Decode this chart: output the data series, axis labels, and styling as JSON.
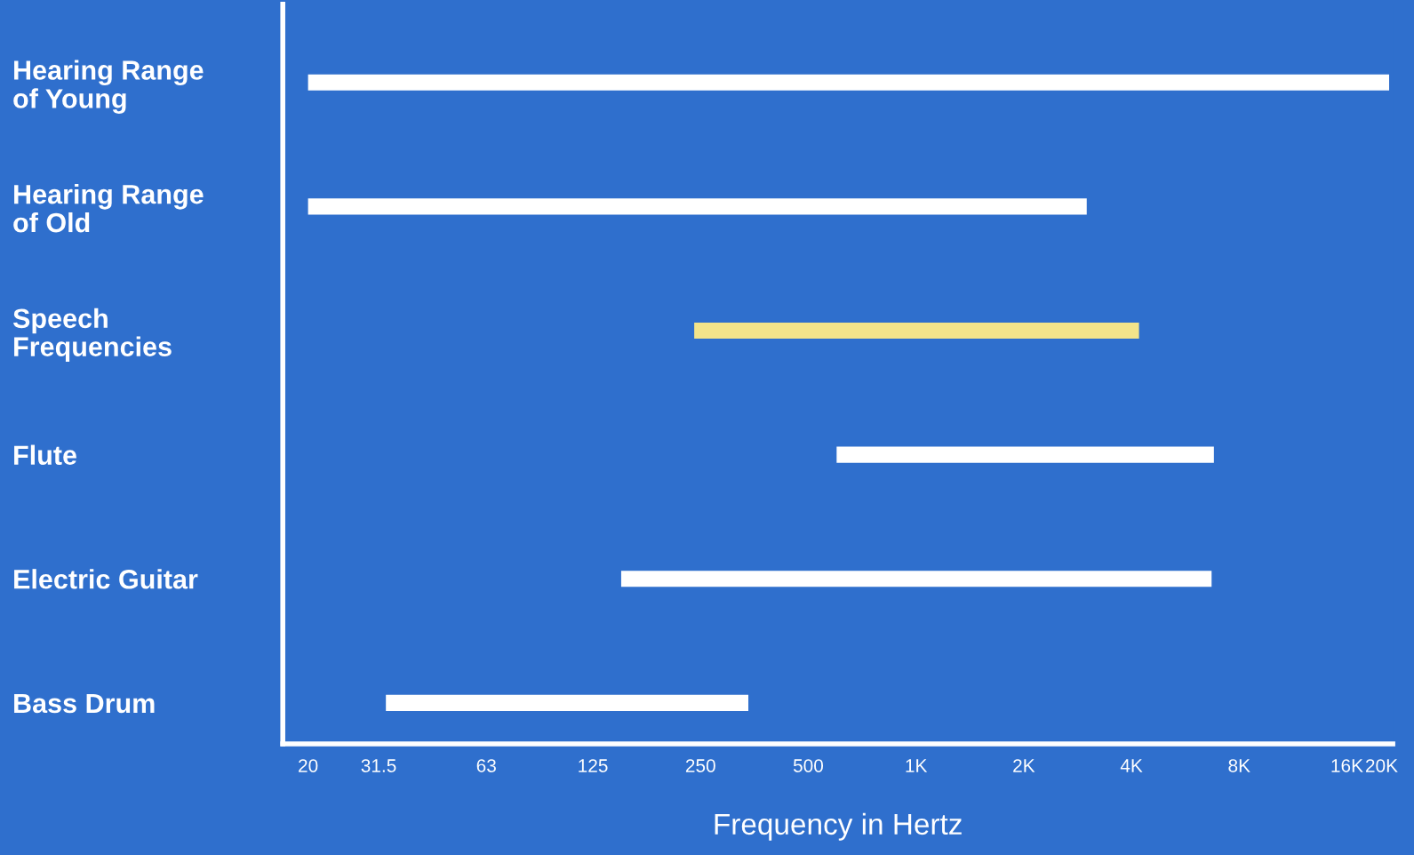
{
  "chart_data": {
    "type": "bar",
    "orientation": "horizontal",
    "xlabel": "Frequency in Hertz",
    "categories": [
      "Hearing Range\nof Young",
      "Hearing Range\nof Old",
      "Speech\nFrequencies",
      "Flute",
      "Electric Guitar",
      "Bass Drum"
    ],
    "base": [
      20,
      20,
      240,
      600,
      150,
      33
    ],
    "values": [
      20980,
      2980,
      3960,
      6200,
      6550,
      307
    ],
    "colors": [
      "#ffffff",
      "#ffffff",
      "#f3e48a",
      "#ffffff",
      "#ffffff",
      "#ffffff"
    ],
    "xlim": [
      17,
      21500
    ],
    "log": "x",
    "xticks": [
      20,
      31.5,
      63,
      125,
      250,
      500,
      {
        "value": 1000,
        "label": "1K"
      },
      {
        "value": 2000,
        "label": "2K"
      },
      {
        "value": 4000,
        "label": "4K"
      },
      {
        "value": 8000,
        "label": "8K"
      },
      {
        "value": 16000,
        "label": "16K"
      },
      {
        "value": 20000,
        "label": "20K"
      }
    ],
    "grid": false,
    "legend": false
  }
}
